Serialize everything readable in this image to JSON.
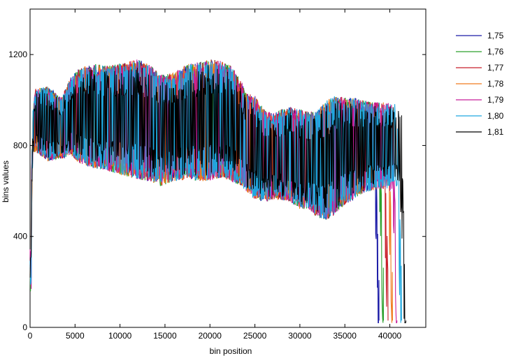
{
  "chart_data": {
    "type": "line",
    "title": "",
    "xlabel": "bin position",
    "ylabel": "bins values",
    "xlim": [
      0,
      44000
    ],
    "ylim": [
      0,
      1400
    ],
    "xticks": [
      0,
      5000,
      10000,
      15000,
      20000,
      25000,
      30000,
      35000,
      40000
    ],
    "yticks": [
      0,
      400,
      800,
      1200
    ],
    "grid": false,
    "legend_position": "outside-right-top",
    "series": [
      {
        "name": "1,75",
        "color": "#1a1aa6",
        "end_x": 38800
      },
      {
        "name": "1,76",
        "color": "#2ca02c",
        "end_x": 39300
      },
      {
        "name": "1,77",
        "color": "#c81e2a",
        "end_x": 39800
      },
      {
        "name": "1,78",
        "color": "#f07a1e",
        "end_x": 40300
      },
      {
        "name": "1,79",
        "color": "#c81e9a",
        "end_x": 40800
      },
      {
        "name": "1,80",
        "color": "#1ea8e0",
        "end_x": 41300
      },
      {
        "name": "1,81",
        "color": "#000000",
        "end_x": 41800
      }
    ],
    "envelope": {
      "x": [
        0,
        300,
        600,
        2000,
        3500,
        4500,
        5500,
        7000,
        8500,
        10000,
        11000,
        12000,
        13500,
        14500,
        16000,
        17500,
        19000,
        20500,
        21500,
        22500,
        23500,
        24000,
        25000,
        26000,
        27000,
        28000,
        29000,
        30000,
        31000,
        32000,
        33000,
        34000,
        35000,
        36000,
        37000,
        38000,
        39000,
        40000,
        41000,
        41500,
        41800
      ],
      "upper": [
        300,
        950,
        1050,
        1060,
        1010,
        1100,
        1140,
        1160,
        1150,
        1160,
        1170,
        1180,
        1150,
        1110,
        1120,
        1160,
        1170,
        1180,
        1170,
        1150,
        1080,
        1030,
        1020,
        960,
        940,
        960,
        970,
        960,
        950,
        960,
        1000,
        1020,
        1010,
        1010,
        1000,
        990,
        990,
        990,
        980,
        980,
        960
      ],
      "lower": [
        150,
        760,
        770,
        730,
        740,
        760,
        720,
        700,
        690,
        670,
        660,
        650,
        640,
        620,
        640,
        650,
        640,
        650,
        660,
        640,
        620,
        600,
        560,
        550,
        560,
        560,
        550,
        520,
        520,
        480,
        470,
        500,
        540,
        560,
        590,
        600,
        610,
        600,
        620,
        300,
        100
      ]
    }
  }
}
